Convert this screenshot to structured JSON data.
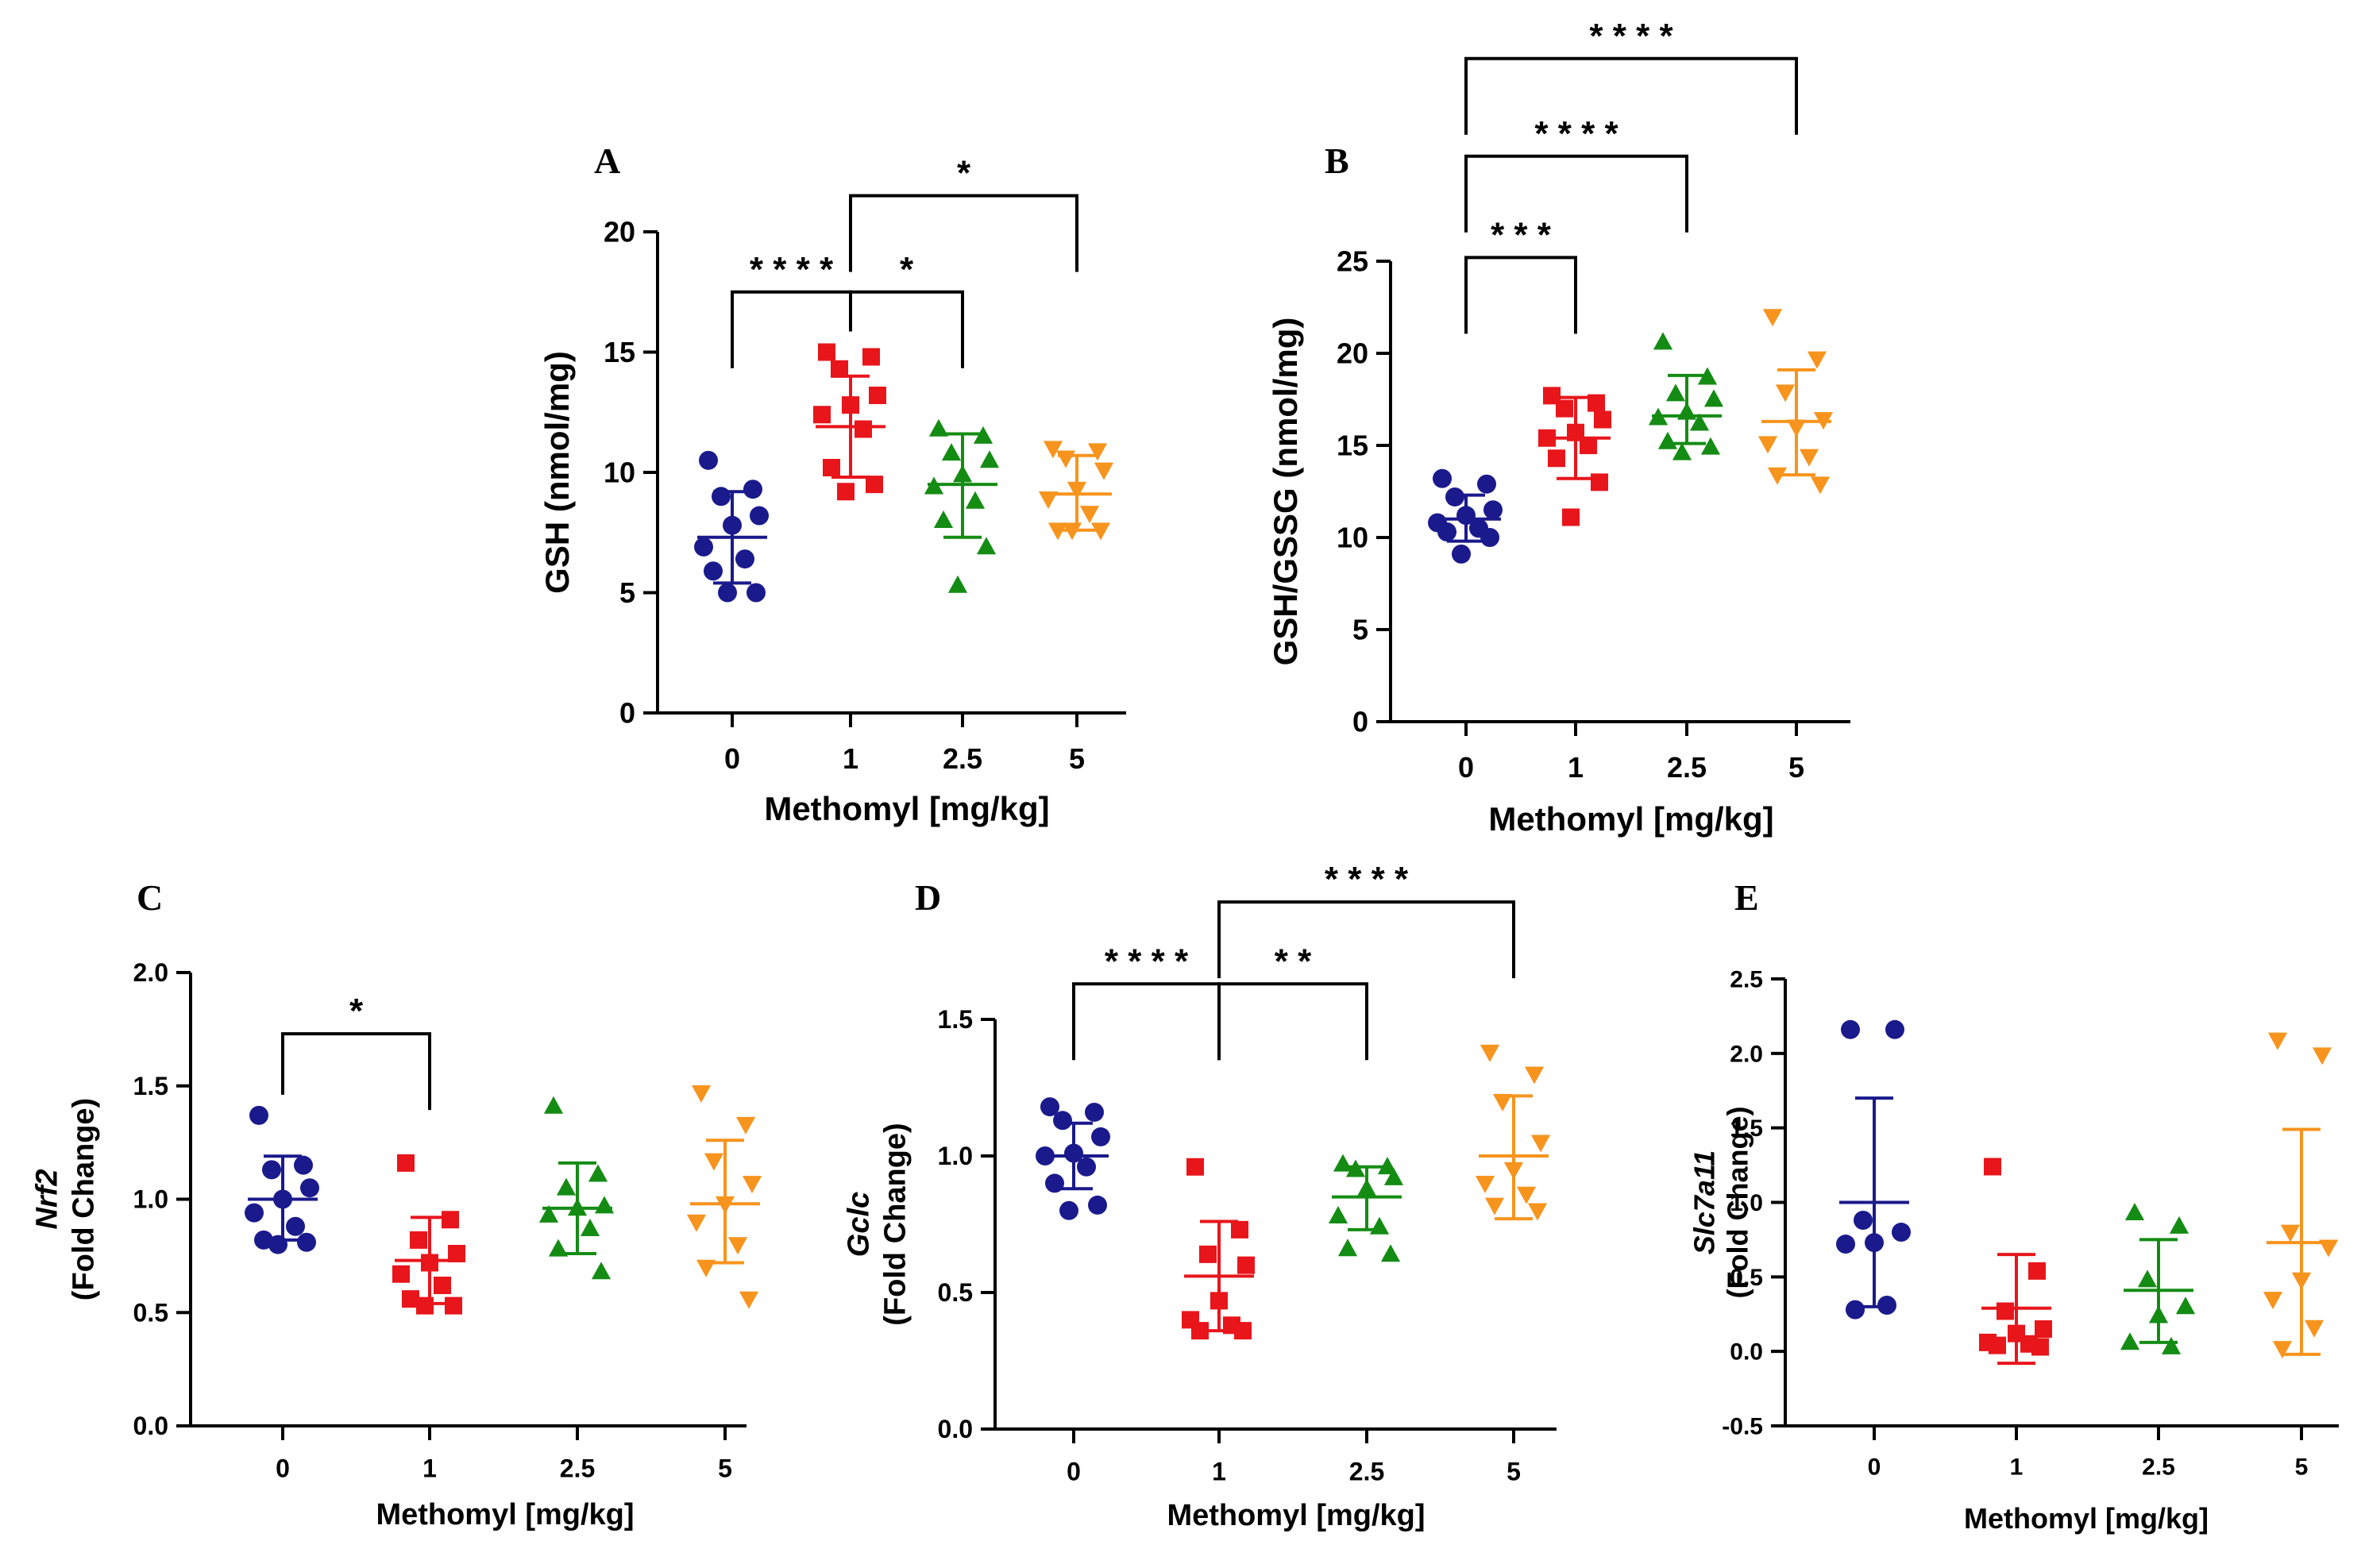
{
  "colors": {
    "0": "#1a1a8c",
    "1": "#e8151b",
    "2.5": "#148c14",
    "5": "#f7941d"
  },
  "chart_data": [
    {
      "id": "A",
      "type": "scatter",
      "panel_label": "A",
      "ylabel": "GSH (nmol/mg)",
      "ylabel_parts": [
        {
          "text": "GSH (nmol/mg)",
          "italic": false
        }
      ],
      "xlabel": "Methomyl [mg/kg]",
      "categories": [
        "0",
        "1",
        "2.5",
        "5"
      ],
      "ylim": [
        0,
        20
      ],
      "yticks": [
        "0",
        "5",
        "10",
        "15",
        "20"
      ],
      "groups": [
        {
          "name": "0",
          "marker": "circle",
          "mean": 7.3,
          "sd_low": 5.4,
          "sd_high": 9.2,
          "points": [
            10.5,
            9.3,
            9.0,
            8.2,
            7.8,
            6.9,
            6.4,
            5.9,
            5.0,
            5.0
          ]
        },
        {
          "name": "1",
          "marker": "square",
          "mean": 11.9,
          "sd_low": 9.8,
          "sd_high": 14.0,
          "points": [
            15.0,
            14.8,
            14.3,
            13.2,
            12.8,
            12.4,
            11.8,
            10.2,
            9.5,
            9.2
          ]
        },
        {
          "name": "2.5",
          "marker": "triangle-up",
          "mean": 9.5,
          "sd_low": 7.3,
          "sd_high": 11.6,
          "points": [
            11.8,
            11.5,
            10.8,
            10.5,
            9.9,
            9.4,
            8.8,
            8.0,
            6.9,
            5.3
          ]
        },
        {
          "name": "5",
          "marker": "triangle-down",
          "mean": 9.1,
          "sd_low": 7.6,
          "sd_high": 10.7,
          "points": [
            11.0,
            10.9,
            10.6,
            10.1,
            9.3,
            8.9,
            8.3,
            7.6,
            7.6,
            7.6
          ]
        }
      ],
      "significance": [
        {
          "from": "0",
          "to": "1",
          "label": "****",
          "y": 17.5
        },
        {
          "from": "1",
          "to": "2.5",
          "label": "*",
          "y": 17.5
        },
        {
          "from": "1",
          "to": "5",
          "label": "*",
          "y": 21.5
        }
      ]
    },
    {
      "id": "B",
      "type": "scatter",
      "panel_label": "B",
      "ylabel": "GSH/GSSG (nmol/mg)",
      "ylabel_parts": [
        {
          "text": "GSH/GSSG (nmol/mg)",
          "italic": false
        }
      ],
      "xlabel": "Methomyl [mg/kg]",
      "categories": [
        "0",
        "1",
        "2.5",
        "5"
      ],
      "ylim": [
        0,
        25
      ],
      "yticks": [
        "0",
        "5",
        "10",
        "15",
        "20",
        "25"
      ],
      "groups": [
        {
          "name": "0",
          "marker": "circle",
          "mean": 11.0,
          "sd_low": 9.8,
          "sd_high": 12.3,
          "points": [
            13.2,
            12.9,
            12.2,
            11.5,
            11.2,
            10.8,
            10.5,
            10.3,
            10.0,
            9.1
          ]
        },
        {
          "name": "1",
          "marker": "square",
          "mean": 15.4,
          "sd_low": 13.2,
          "sd_high": 17.6,
          "points": [
            17.7,
            17.3,
            17.0,
            16.4,
            15.7,
            15.4,
            15.0,
            14.3,
            13.0,
            11.1
          ]
        },
        {
          "name": "2.5",
          "marker": "triangle-up",
          "mean": 16.6,
          "sd_low": 15.1,
          "sd_high": 18.8,
          "points": [
            20.6,
            18.7,
            17.8,
            17.5,
            16.8,
            16.5,
            16.2,
            15.2,
            14.9,
            14.6
          ]
        },
        {
          "name": "5",
          "marker": "triangle-down",
          "mean": 16.3,
          "sd_low": 13.4,
          "sd_high": 19.1,
          "points": [
            22.0,
            19.7,
            17.9,
            16.4,
            16.0,
            15.1,
            14.4,
            13.4,
            12.9
          ]
        }
      ],
      "significance": [
        {
          "from": "0",
          "to": "1",
          "label": "***",
          "y": 25.2
        },
        {
          "from": "0",
          "to": "2.5",
          "label": "****",
          "y": 30.7
        },
        {
          "from": "0",
          "to": "5",
          "label": "****",
          "y": 36.0
        }
      ]
    },
    {
      "id": "C",
      "type": "scatter",
      "panel_label": "C",
      "ylabel": "Nrf2 (Fold Change)",
      "ylabel_parts": [
        {
          "text": "Nrf2",
          "italic": true
        },
        {
          "text": "(Fold Change)",
          "italic": false
        }
      ],
      "xlabel": "Methomyl [mg/kg]",
      "categories": [
        "0",
        "1",
        "2.5",
        "5"
      ],
      "ylim": [
        0,
        2.0
      ],
      "yticks": [
        "0.0",
        "0.5",
        "1.0",
        "1.5",
        "2.0"
      ],
      "groups": [
        {
          "name": "0",
          "marker": "circle",
          "mean": 1.0,
          "sd_low": 0.82,
          "sd_high": 1.19,
          "points": [
            1.37,
            1.15,
            1.13,
            1.05,
            1.0,
            0.94,
            0.88,
            0.82,
            0.81,
            0.8
          ]
        },
        {
          "name": "1",
          "marker": "square",
          "mean": 0.73,
          "sd_low": 0.54,
          "sd_high": 0.92,
          "points": [
            1.16,
            0.91,
            0.82,
            0.76,
            0.72,
            0.67,
            0.62,
            0.56,
            0.53,
            0.53
          ]
        },
        {
          "name": "2.5",
          "marker": "triangle-up",
          "mean": 0.96,
          "sd_low": 0.76,
          "sd_high": 1.16,
          "points": [
            1.41,
            1.11,
            1.05,
            0.97,
            0.96,
            0.93,
            0.87,
            0.78,
            0.68
          ]
        },
        {
          "name": "5",
          "marker": "triangle-down",
          "mean": 0.98,
          "sd_low": 0.72,
          "sd_high": 1.26,
          "points": [
            1.47,
            1.33,
            1.17,
            1.07,
            0.98,
            0.9,
            0.8,
            0.7,
            0.56
          ]
        }
      ],
      "significance": [
        {
          "from": "0",
          "to": "1",
          "label": "*",
          "y": 1.73
        }
      ]
    },
    {
      "id": "D",
      "type": "scatter",
      "panel_label": "D",
      "ylabel": "Gclc (Fold Change)",
      "ylabel_parts": [
        {
          "text": "Gclc",
          "italic": true
        },
        {
          "text": "(Fold Change)",
          "italic": false
        }
      ],
      "xlabel": "Methomyl [mg/kg]",
      "categories": [
        "0",
        "1",
        "2.5",
        "5"
      ],
      "ylim": [
        0,
        1.5
      ],
      "yticks": [
        "0.0",
        "0.5",
        "1.0",
        "1.5"
      ],
      "groups": [
        {
          "name": "0",
          "marker": "circle",
          "mean": 1.0,
          "sd_low": 0.88,
          "sd_high": 1.12,
          "points": [
            1.18,
            1.16,
            1.13,
            1.07,
            1.01,
            1.0,
            0.96,
            0.9,
            0.82,
            0.8
          ]
        },
        {
          "name": "1",
          "marker": "square",
          "mean": 0.56,
          "sd_low": 0.36,
          "sd_high": 0.76,
          "points": [
            0.96,
            0.73,
            0.64,
            0.6,
            0.47,
            0.4,
            0.38,
            0.36,
            0.36
          ]
        },
        {
          "name": "2.5",
          "marker": "triangle-up",
          "mean": 0.85,
          "sd_low": 0.73,
          "sd_high": 0.96,
          "points": [
            0.97,
            0.96,
            0.95,
            0.92,
            0.88,
            0.78,
            0.74,
            0.66,
            0.64
          ]
        },
        {
          "name": "5",
          "marker": "triangle-down",
          "mean": 1.0,
          "sd_low": 0.77,
          "sd_high": 1.22,
          "points": [
            1.38,
            1.3,
            1.2,
            1.05,
            0.95,
            0.9,
            0.86,
            0.82,
            0.8
          ]
        }
      ],
      "significance": [
        {
          "from": "0",
          "to": "1",
          "label": "****",
          "y": 1.63
        },
        {
          "from": "1",
          "to": "2.5",
          "label": "**",
          "y": 1.63
        },
        {
          "from": "1",
          "to": "5",
          "label": "****",
          "y": 1.93
        }
      ]
    },
    {
      "id": "E",
      "type": "scatter",
      "panel_label": "E",
      "ylabel": "Slc7a11 (Fold Change)",
      "ylabel_parts": [
        {
          "text": "Slc7a11",
          "italic": true
        },
        {
          "text": "(Fold Change)",
          "italic": false
        }
      ],
      "xlabel": "Methomyl [mg/kg]",
      "categories": [
        "0",
        "1",
        "2.5",
        "5"
      ],
      "ylim": [
        -0.5,
        2.5
      ],
      "yticks": [
        "-0.5",
        "0.0",
        "0.5",
        "1.0",
        "1.5",
        "2.0",
        "2.5"
      ],
      "groups": [
        {
          "name": "0",
          "marker": "circle",
          "mean": 1.0,
          "sd_low": 0.3,
          "sd_high": 1.7,
          "points": [
            2.16,
            2.16,
            0.88,
            0.8,
            0.73,
            0.72,
            0.31,
            0.28
          ]
        },
        {
          "name": "1",
          "marker": "square",
          "mean": 0.29,
          "sd_low": -0.08,
          "sd_high": 0.65,
          "points": [
            1.24,
            0.54,
            0.27,
            0.15,
            0.12,
            0.06,
            0.05,
            0.04,
            0.03
          ]
        },
        {
          "name": "2.5",
          "marker": "triangle-up",
          "mean": 0.41,
          "sd_low": 0.06,
          "sd_high": 0.75,
          "points": [
            0.93,
            0.84,
            0.48,
            0.3,
            0.24,
            0.06,
            0.03
          ]
        },
        {
          "name": "5",
          "marker": "triangle-down",
          "mean": 0.73,
          "sd_low": -0.02,
          "sd_high": 1.49,
          "points": [
            2.09,
            1.99,
            0.8,
            0.7,
            0.48,
            0.35,
            0.16,
            0.02
          ]
        }
      ],
      "significance": []
    }
  ]
}
